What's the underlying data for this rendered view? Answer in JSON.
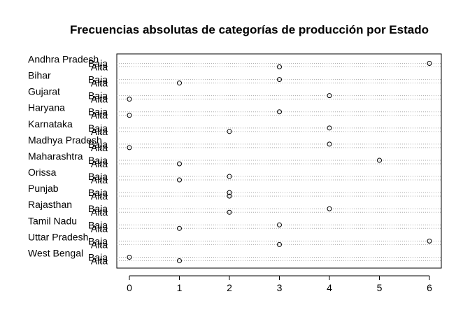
{
  "chart_data": {
    "type": "dotchart",
    "title": "Frecuencias absolutas de categorías de producción por Estado",
    "xlabel": "",
    "ylabel": "",
    "xlim": [
      0,
      6
    ],
    "x_ticks": [
      0,
      1,
      2,
      3,
      4,
      5,
      6
    ],
    "grid": "dotted horizontal lines",
    "levels": [
      "Baja",
      "Alta"
    ],
    "groups": [
      {
        "name": "Andhra Pradesh",
        "values": {
          "Baja": 6,
          "Alta": 3
        }
      },
      {
        "name": "Bihar",
        "values": {
          "Baja": 3,
          "Alta": 1
        }
      },
      {
        "name": "Gujarat",
        "values": {
          "Baja": 4,
          "Alta": 0
        }
      },
      {
        "name": "Haryana",
        "values": {
          "Baja": 3,
          "Alta": 0
        }
      },
      {
        "name": "Karnataka",
        "values": {
          "Baja": 4,
          "Alta": 2
        }
      },
      {
        "name": "Madhya Pradesh",
        "values": {
          "Baja": 4,
          "Alta": 0
        }
      },
      {
        "name": "Maharashtra",
        "values": {
          "Baja": 5,
          "Alta": 1
        }
      },
      {
        "name": "Orissa",
        "values": {
          "Baja": 2,
          "Alta": 1
        }
      },
      {
        "name": "Punjab",
        "values": {
          "Baja": 2,
          "Alta": 2
        }
      },
      {
        "name": "Rajasthan",
        "values": {
          "Baja": 4,
          "Alta": 2
        }
      },
      {
        "name": "Tamil Nadu",
        "values": {
          "Baja": 3,
          "Alta": 1
        }
      },
      {
        "name": "Uttar Pradesh",
        "values": {
          "Baja": 6,
          "Alta": 3
        }
      },
      {
        "name": "West Bengal",
        "values": {
          "Baja": 0,
          "Alta": 1
        }
      }
    ]
  }
}
